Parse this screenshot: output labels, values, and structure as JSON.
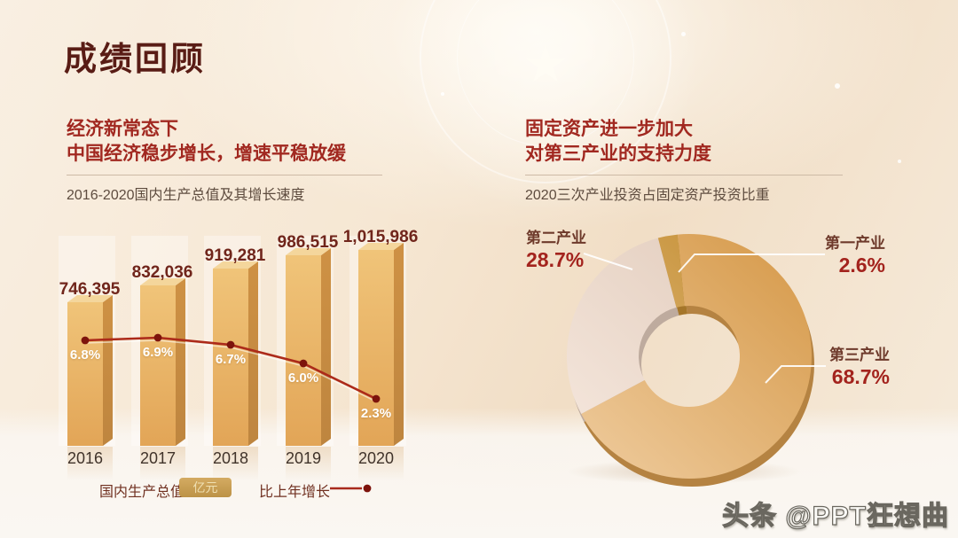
{
  "slide": {
    "title": "成绩回顾"
  },
  "left_section": {
    "heading_line1": "经济新常态下",
    "heading_line2": "中国经济稳步增长，增速平稳放缓",
    "subtitle": "2016-2020国内生产总值及其增长速度",
    "legend": {
      "bar_series_label": "国内生产总值",
      "unit_badge": "亿元",
      "line_series_label": "比上年增长"
    }
  },
  "right_section": {
    "heading_line1": "固定资产进一步加大",
    "heading_line2": "对第三产业的支持力度",
    "subtitle": "2020三次产业投资占固定资产投资比重"
  },
  "watermark": "头条 @PPT狂想曲",
  "icons": {
    "emblem_star": "★"
  },
  "chart_data": [
    {
      "type": "bar",
      "title": "2016-2020国内生产总值及其增长速度",
      "categories": [
        "2016",
        "2017",
        "2018",
        "2019",
        "2020"
      ],
      "series": [
        {
          "name": "国内生产总值",
          "type": "bar",
          "unit": "亿元",
          "values": [
            746395,
            832036,
            919281,
            986515,
            1015986
          ],
          "labels": [
            "746,395",
            "832,036",
            "919,281",
            "986,515",
            "1,015,986"
          ]
        },
        {
          "name": "比上年增长",
          "type": "line",
          "unit": "%",
          "values": [
            6.8,
            6.9,
            6.7,
            6.0,
            2.3
          ],
          "labels": [
            "6.8%",
            "6.9%",
            "6.7%",
            "6.0%",
            "2.3%"
          ]
        }
      ],
      "ylim": [
        0,
        1015986
      ],
      "legend_position": "bottom"
    },
    {
      "type": "pie",
      "title": "2020三次产业投资占固定资产投资比重",
      "slices": [
        {
          "name": "第三产业",
          "value": 68.7,
          "label": "68.7%",
          "color": "#E2A452"
        },
        {
          "name": "第二产业",
          "value": 28.7,
          "label": "28.7%",
          "color": "#EDD6C5"
        },
        {
          "name": "第一产业",
          "value": 2.6,
          "label": "2.6%",
          "color": "#CE9434"
        }
      ],
      "donut": true
    }
  ],
  "colors": {
    "accent_red": "#A3231D",
    "title": "#591C15",
    "heading_red": "#A12820",
    "subtitle_text": "#5E4C3F",
    "bar_front_top": "#F0C479",
    "bar_front_bottom": "#E2A557",
    "bar_side": "#CE9144",
    "bar_top_face": "#F4D69C",
    "growth_line": "#AC2A1A",
    "growth_dot": "#7D130C",
    "value_text": "#70251B",
    "year_text": "#40332A",
    "legend_text": "#703020",
    "badge_bg": "#CBA258",
    "badge_text": "#EFE0B2",
    "background_top": "#F9EFE2",
    "floor": "#FAF6F1"
  }
}
